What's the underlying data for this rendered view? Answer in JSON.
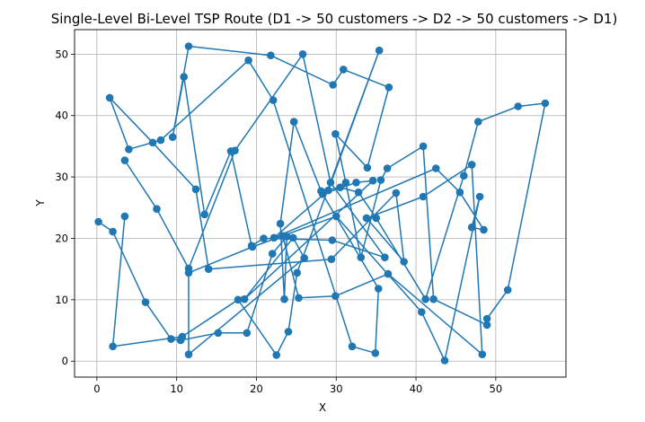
{
  "chart_data": {
    "type": "line",
    "title": "Single-Level Bi-Level TSP Route (D1 -> 50 customers -> D2 -> 50 customers -> D1)",
    "xlabel": "X",
    "ylabel": "Y",
    "xlim": [
      -2.8,
      58.8
    ],
    "ylim": [
      -2.6,
      54.0
    ],
    "xticks": [
      0,
      10,
      20,
      30,
      40,
      50
    ],
    "yticks": [
      0,
      10,
      20,
      30,
      40,
      50
    ],
    "grid": true,
    "line_color": "#1f77b4",
    "series": [
      {
        "marker": "circle",
        "x": [
          0.2,
          2.0,
          6.1,
          9.3,
          10.5,
          15.2,
          18.8,
          22.0,
          23.8,
          23.5,
          23.0,
          24.7,
          28.1,
          30.5,
          32.8,
          35.0,
          41.2,
          46.0,
          47.8,
          52.8,
          56.2,
          51.5,
          48.9,
          48.9,
          42.2,
          40.9,
          36.4,
          35.6,
          33.1,
          31.2,
          29.9,
          33.9,
          36.6,
          30.9,
          29.6,
          21.8,
          11.5,
          9.5,
          10.9,
          13.5,
          16.8,
          19.4,
          20.9,
          29.5,
          36.1,
          29.3,
          25.8,
          17.3,
          11.5,
          7.5,
          3.5
        ],
        "y": [
          22.7,
          21.1,
          9.6,
          3.6,
          3.4,
          4.6,
          4.6,
          17.5,
          20.3,
          10.1,
          22.4,
          39.0,
          27.7,
          28.3,
          27.5,
          23.3,
          10.1,
          30.2,
          39.0,
          41.5,
          42.0,
          11.6,
          6.9,
          5.9,
          10.1,
          35.0,
          31.4,
          29.5,
          16.9,
          29.1,
          37.0,
          31.5,
          44.6,
          47.5,
          45.0,
          49.8,
          51.3,
          36.5,
          46.3,
          23.9,
          34.2,
          18.8,
          20.0,
          19.7,
          16.9,
          29.1,
          50.0,
          34.3,
          15.1,
          24.8,
          32.7
        ]
      },
      {
        "marker": "circle",
        "x": [
          3.5,
          2.0,
          10.7,
          17.7,
          22.5,
          24.0,
          25.1,
          35.4,
          29.0,
          22.2,
          42.5,
          45.5,
          48.5,
          47.0,
          48.0,
          43.6,
          40.7,
          30.0,
          19.5,
          11.5,
          11.5,
          26.0,
          24.6,
          18.5,
          34.6,
          32.5,
          28.3,
          35.3,
          34.9,
          32.0,
          22.1,
          19.0,
          8.0,
          4.0,
          1.6,
          7.0,
          12.4,
          14.0,
          29.4,
          37.5,
          38.5,
          33.8,
          40.9,
          47.0,
          48.3,
          36.5,
          29.9,
          25.3,
          23.3
        ],
        "y": [
          23.6,
          2.4,
          4.0,
          10.0,
          1.0,
          4.8,
          14.4,
          50.6,
          27.8,
          20.1,
          31.4,
          27.5,
          21.4,
          21.8,
          26.8,
          0.1,
          8.0,
          23.6,
          18.6,
          14.4,
          1.1,
          16.8,
          20.1,
          10.1,
          29.4,
          29.1,
          27.2,
          11.8,
          1.3,
          2.4,
          42.5,
          49.0,
          36.0,
          34.5,
          42.9,
          35.6,
          28.0,
          15.0,
          16.6,
          27.4,
          16.2,
          23.3,
          26.8,
          32.0,
          1.1,
          14.2,
          10.6,
          10.3,
          20.4
        ]
      }
    ]
  }
}
